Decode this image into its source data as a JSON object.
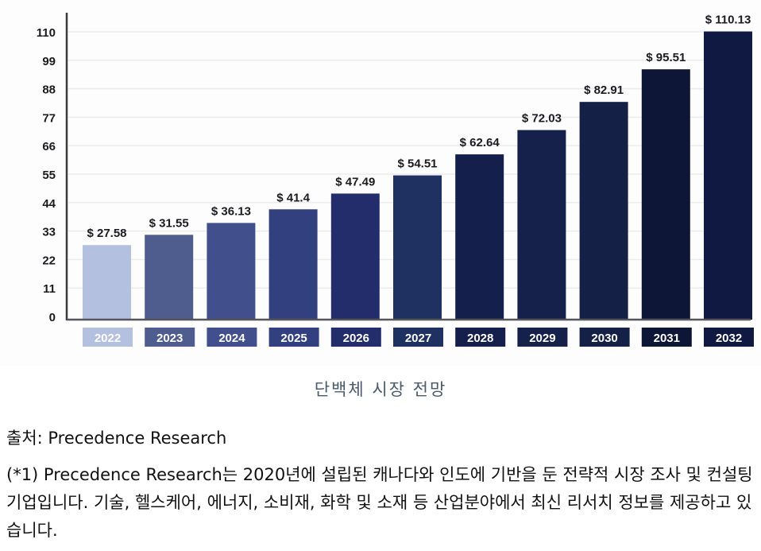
{
  "chart_data": {
    "type": "bar",
    "title": "단백체 시장 전망",
    "xlabel": "",
    "ylabel": "",
    "ylim": [
      0,
      110
    ],
    "yticks": [
      0,
      11,
      22,
      33,
      44,
      55,
      66,
      77,
      88,
      99,
      110
    ],
    "grid": true,
    "legend": "none",
    "categories": [
      "2022",
      "2023",
      "2024",
      "2025",
      "2026",
      "2027",
      "2028",
      "2029",
      "2030",
      "2031",
      "2032"
    ],
    "values": [
      27.58,
      31.55,
      36.13,
      41.4,
      47.49,
      54.51,
      62.64,
      72.03,
      82.91,
      95.51,
      110.13
    ],
    "value_labels": [
      "$ 27.58",
      "$ 31.55",
      "$ 36.13",
      "$ 41.4",
      "$ 47.49",
      "$ 54.51",
      "$ 62.64",
      "$ 72.03",
      "$ 82.91",
      "$ 95.51",
      "$ 110.13"
    ],
    "colors": [
      "#b4c0e0",
      "#4e5d8e",
      "#414f8d",
      "#33407f",
      "#232d6b",
      "#1f3160",
      "#141f4c",
      "#15214a",
      "#142046",
      "#0e1638",
      "#0f1941"
    ]
  },
  "caption": "단백체 시장 전망",
  "source": "출처: Precedence Research",
  "note": "(*1) Precedence Research는 2020년에 설립된 캐나다와 인도에 기반을 둔 전략적 시장 조사 및 컨설팅기업입니다. 기술, 헬스케어, 에너지, 소비재, 화학 및 소재 등 산업분야에서 최신 리서치 정보를 제공하고 있습니다."
}
